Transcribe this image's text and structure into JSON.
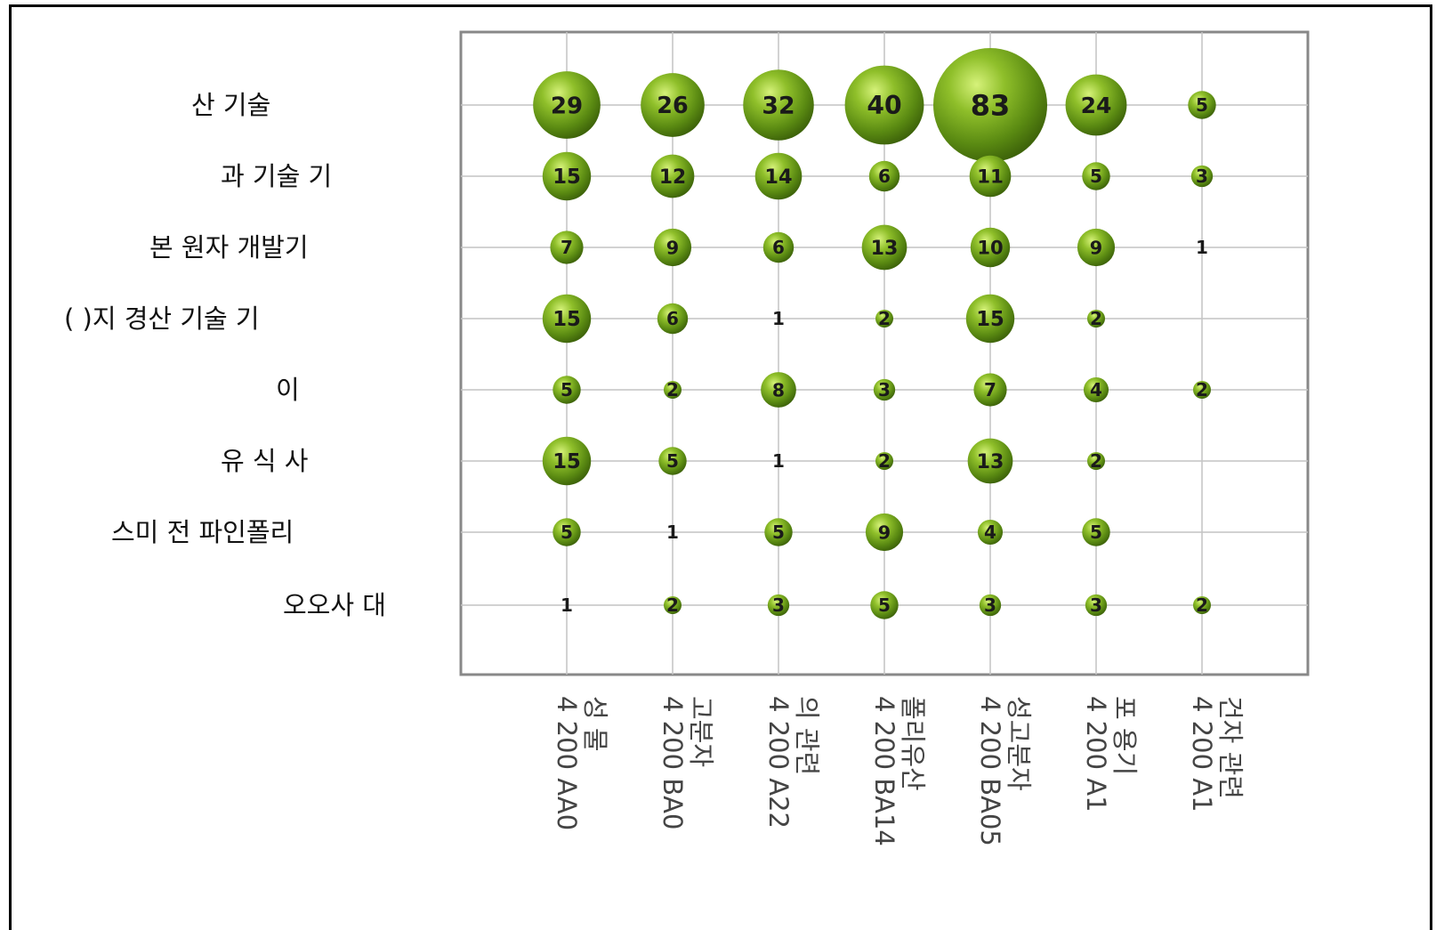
{
  "chart_data": {
    "type": "bubble",
    "title": "",
    "xlabel": "",
    "ylabel": "",
    "grid": true,
    "bubble_color": "#7aa51c",
    "categories_y": [
      "산 기술",
      "과 기술 기",
      "본 원자 개발기",
      "( )지 경산 기술 기",
      "이",
      "유 식 사",
      "스미 전 파인폴리",
      "오오사 대"
    ],
    "categories_x": [
      {
        "code": "4 200 AA0",
        "name": "성 물"
      },
      {
        "code": "4 200 BA0",
        "name": "고분자"
      },
      {
        "code": "4 200 A22",
        "name": "의 관련"
      },
      {
        "code": "4 200 BA14",
        "name": "폴리유산"
      },
      {
        "code": "4 200 BA05",
        "name": "성고분자"
      },
      {
        "code": "4 200 A1",
        "name": "포 용기"
      },
      {
        "code": "4 200 A1",
        "name": "건자 관련"
      }
    ],
    "values": [
      [
        29,
        26,
        32,
        40,
        83,
        24,
        5
      ],
      [
        15,
        12,
        14,
        6,
        11,
        5,
        3
      ],
      [
        7,
        9,
        6,
        13,
        10,
        9,
        1
      ],
      [
        15,
        6,
        1,
        2,
        15,
        2,
        null
      ],
      [
        5,
        2,
        8,
        3,
        7,
        4,
        2
      ],
      [
        15,
        5,
        1,
        2,
        13,
        2,
        null
      ],
      [
        5,
        1,
        5,
        9,
        4,
        5,
        null
      ],
      [
        1,
        2,
        3,
        5,
        3,
        3,
        2
      ]
    ]
  }
}
